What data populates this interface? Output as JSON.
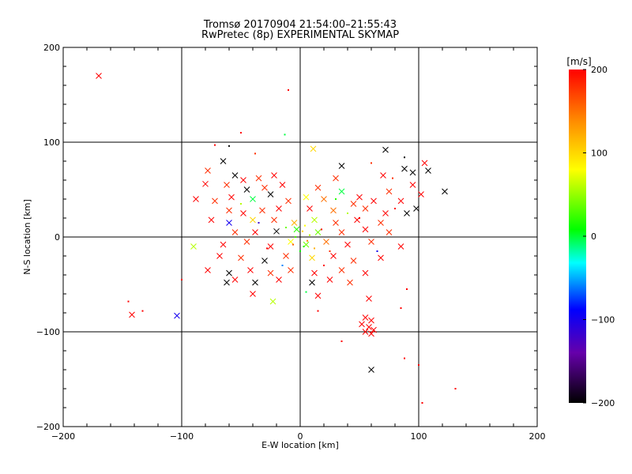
{
  "chart_data": {
    "type": "scatter",
    "title": "Tromsø 20170904 21:54:00–21:55:43",
    "subtitle": "RwPretec (8p) EXPERIMENTAL SKYMAP",
    "xlabel": "E-W location [km]",
    "ylabel": "N-S location [km]",
    "xlim": [
      -200,
      200
    ],
    "ylim": [
      -200,
      200
    ],
    "x_ticks": [
      -200,
      -100,
      0,
      100,
      200
    ],
    "y_ticks": [
      -200,
      -100,
      0,
      100,
      200
    ],
    "x_tick_labels": [
      "−200",
      "−100",
      "0",
      "100",
      "200"
    ],
    "y_tick_labels": [
      "−200",
      "−100",
      "0",
      "100",
      "200"
    ],
    "grid": true,
    "colorbar": {
      "label": "[m/s]",
      "range": [
        -200,
        200
      ],
      "ticks": [
        200,
        100,
        0,
        -100,
        -200
      ],
      "tick_labels": [
        "200",
        "100",
        "0",
        "−100",
        "−200"
      ],
      "colormap": [
        "#000000",
        "#6600aa",
        "#0000ff",
        "#00ffff",
        "#00ff00",
        "#ffff00",
        "#ff8800",
        "#ff0000"
      ]
    },
    "points": [
      {
        "x": -170,
        "y": 170,
        "v": 200,
        "m": "x"
      },
      {
        "x": -10,
        "y": 155,
        "v": 200,
        "m": "d"
      },
      {
        "x": -13,
        "y": 108,
        "v": 0,
        "m": "d"
      },
      {
        "x": -50,
        "y": 110,
        "v": 200,
        "m": "d"
      },
      {
        "x": -72,
        "y": 97,
        "v": 200,
        "m": "d"
      },
      {
        "x": -60,
        "y": 96,
        "v": -200,
        "m": "d"
      },
      {
        "x": -38,
        "y": 88,
        "v": 180,
        "m": "d"
      },
      {
        "x": 11,
        "y": 93,
        "v": 100,
        "m": "x"
      },
      {
        "x": 72,
        "y": 92,
        "v": -200,
        "m": "x"
      },
      {
        "x": 88,
        "y": 84,
        "v": -200,
        "m": "d"
      },
      {
        "x": -65,
        "y": 80,
        "v": -200,
        "m": "x"
      },
      {
        "x": -78,
        "y": 70,
        "v": 180,
        "m": "x"
      },
      {
        "x": 35,
        "y": 75,
        "v": -200,
        "m": "x"
      },
      {
        "x": 60,
        "y": 78,
        "v": 180,
        "m": "d"
      },
      {
        "x": 88,
        "y": 72,
        "v": -200,
        "m": "x"
      },
      {
        "x": 95,
        "y": 68,
        "v": -200,
        "m": "x"
      },
      {
        "x": 105,
        "y": 78,
        "v": 200,
        "m": "x"
      },
      {
        "x": 108,
        "y": 70,
        "v": -200,
        "m": "x"
      },
      {
        "x": -55,
        "y": 65,
        "v": -200,
        "m": "x"
      },
      {
        "x": -48,
        "y": 60,
        "v": 200,
        "m": "x"
      },
      {
        "x": -35,
        "y": 62,
        "v": 180,
        "m": "x"
      },
      {
        "x": -22,
        "y": 65,
        "v": 200,
        "m": "x"
      },
      {
        "x": 30,
        "y": 62,
        "v": 180,
        "m": "x"
      },
      {
        "x": 70,
        "y": 65,
        "v": 200,
        "m": "x"
      },
      {
        "x": 78,
        "y": 62,
        "v": 180,
        "m": "d"
      },
      {
        "x": -80,
        "y": 56,
        "v": 200,
        "m": "x"
      },
      {
        "x": -62,
        "y": 55,
        "v": 180,
        "m": "x"
      },
      {
        "x": -45,
        "y": 50,
        "v": -200,
        "m": "x"
      },
      {
        "x": -30,
        "y": 52,
        "v": 180,
        "m": "x"
      },
      {
        "x": -15,
        "y": 55,
        "v": 200,
        "m": "x"
      },
      {
        "x": 15,
        "y": 52,
        "v": 180,
        "m": "x"
      },
      {
        "x": 35,
        "y": 48,
        "v": 0,
        "m": "x"
      },
      {
        "x": 50,
        "y": 42,
        "v": 200,
        "m": "x"
      },
      {
        "x": 75,
        "y": 48,
        "v": 180,
        "m": "x"
      },
      {
        "x": 95,
        "y": 55,
        "v": 200,
        "m": "x"
      },
      {
        "x": 102,
        "y": 45,
        "v": 200,
        "m": "x"
      },
      {
        "x": 122,
        "y": 48,
        "v": -200,
        "m": "x"
      },
      {
        "x": -88,
        "y": 40,
        "v": 200,
        "m": "x"
      },
      {
        "x": -72,
        "y": 38,
        "v": 180,
        "m": "x"
      },
      {
        "x": -58,
        "y": 42,
        "v": 200,
        "m": "x"
      },
      {
        "x": -40,
        "y": 40,
        "v": 0,
        "m": "x"
      },
      {
        "x": -25,
        "y": 45,
        "v": -200,
        "m": "x"
      },
      {
        "x": -10,
        "y": 38,
        "v": 180,
        "m": "x"
      },
      {
        "x": 5,
        "y": 42,
        "v": 80,
        "m": "x"
      },
      {
        "x": 20,
        "y": 40,
        "v": 150,
        "m": "x"
      },
      {
        "x": 45,
        "y": 35,
        "v": 180,
        "m": "x"
      },
      {
        "x": 62,
        "y": 38,
        "v": 200,
        "m": "x"
      },
      {
        "x": 85,
        "y": 38,
        "v": 200,
        "m": "x"
      },
      {
        "x": 98,
        "y": 30,
        "v": -200,
        "m": "x"
      },
      {
        "x": -60,
        "y": 28,
        "v": 180,
        "m": "x"
      },
      {
        "x": -48,
        "y": 25,
        "v": 200,
        "m": "x"
      },
      {
        "x": -32,
        "y": 28,
        "v": 180,
        "m": "x"
      },
      {
        "x": -18,
        "y": 30,
        "v": 200,
        "m": "x"
      },
      {
        "x": 8,
        "y": 30,
        "v": 200,
        "m": "x"
      },
      {
        "x": 28,
        "y": 28,
        "v": 150,
        "m": "x"
      },
      {
        "x": 55,
        "y": 30,
        "v": 180,
        "m": "x"
      },
      {
        "x": 72,
        "y": 25,
        "v": 200,
        "m": "x"
      },
      {
        "x": 90,
        "y": 25,
        "v": -200,
        "m": "x"
      },
      {
        "x": -75,
        "y": 18,
        "v": 200,
        "m": "x"
      },
      {
        "x": -60,
        "y": 15,
        "v": -100,
        "m": "x"
      },
      {
        "x": -40,
        "y": 18,
        "v": 100,
        "m": "x"
      },
      {
        "x": -22,
        "y": 18,
        "v": 180,
        "m": "x"
      },
      {
        "x": -5,
        "y": 15,
        "v": 120,
        "m": "x"
      },
      {
        "x": 12,
        "y": 18,
        "v": 60,
        "m": "x"
      },
      {
        "x": 30,
        "y": 15,
        "v": 180,
        "m": "x"
      },
      {
        "x": 48,
        "y": 18,
        "v": 200,
        "m": "x"
      },
      {
        "x": 68,
        "y": 15,
        "v": 180,
        "m": "x"
      },
      {
        "x": -55,
        "y": 5,
        "v": 180,
        "m": "x"
      },
      {
        "x": -38,
        "y": 5,
        "v": 200,
        "m": "x"
      },
      {
        "x": -20,
        "y": 6,
        "v": -200,
        "m": "x"
      },
      {
        "x": -3,
        "y": 8,
        "v": 20,
        "m": "x"
      },
      {
        "x": 15,
        "y": 5,
        "v": 40,
        "m": "x"
      },
      {
        "x": 35,
        "y": 5,
        "v": 180,
        "m": "x"
      },
      {
        "x": 55,
        "y": 8,
        "v": 200,
        "m": "x"
      },
      {
        "x": 75,
        "y": 5,
        "v": 180,
        "m": "x"
      },
      {
        "x": -90,
        "y": -10,
        "v": 60,
        "m": "x"
      },
      {
        "x": -65,
        "y": -8,
        "v": 200,
        "m": "x"
      },
      {
        "x": -45,
        "y": -5,
        "v": 180,
        "m": "x"
      },
      {
        "x": -25,
        "y": -10,
        "v": 200,
        "m": "x"
      },
      {
        "x": -8,
        "y": -5,
        "v": 80,
        "m": "x"
      },
      {
        "x": 5,
        "y": -8,
        "v": 40,
        "m": "x"
      },
      {
        "x": 22,
        "y": -5,
        "v": 150,
        "m": "x"
      },
      {
        "x": 40,
        "y": -8,
        "v": 200,
        "m": "x"
      },
      {
        "x": 60,
        "y": -5,
        "v": 180,
        "m": "x"
      },
      {
        "x": 85,
        "y": -10,
        "v": 200,
        "m": "x"
      },
      {
        "x": -68,
        "y": -20,
        "v": 200,
        "m": "x"
      },
      {
        "x": -50,
        "y": -22,
        "v": 180,
        "m": "x"
      },
      {
        "x": -30,
        "y": -25,
        "v": -200,
        "m": "x"
      },
      {
        "x": -12,
        "y": -20,
        "v": 180,
        "m": "x"
      },
      {
        "x": 10,
        "y": -22,
        "v": 100,
        "m": "x"
      },
      {
        "x": 28,
        "y": -20,
        "v": 200,
        "m": "x"
      },
      {
        "x": 45,
        "y": -25,
        "v": 180,
        "m": "x"
      },
      {
        "x": 68,
        "y": -22,
        "v": 200,
        "m": "x"
      },
      {
        "x": -78,
        "y": -35,
        "v": 200,
        "m": "x"
      },
      {
        "x": -60,
        "y": -38,
        "v": -200,
        "m": "x"
      },
      {
        "x": -42,
        "y": -35,
        "v": 200,
        "m": "x"
      },
      {
        "x": -25,
        "y": -38,
        "v": 180,
        "m": "x"
      },
      {
        "x": -8,
        "y": -35,
        "v": 180,
        "m": "x"
      },
      {
        "x": 12,
        "y": -38,
        "v": 200,
        "m": "x"
      },
      {
        "x": 35,
        "y": -35,
        "v": 180,
        "m": "x"
      },
      {
        "x": 55,
        "y": -38,
        "v": 200,
        "m": "x"
      },
      {
        "x": -62,
        "y": -48,
        "v": -200,
        "m": "x"
      },
      {
        "x": -55,
        "y": -45,
        "v": 200,
        "m": "x"
      },
      {
        "x": -38,
        "y": -48,
        "v": -200,
        "m": "x"
      },
      {
        "x": -18,
        "y": -45,
        "v": 200,
        "m": "x"
      },
      {
        "x": 10,
        "y": -48,
        "v": -200,
        "m": "x"
      },
      {
        "x": 25,
        "y": -45,
        "v": 200,
        "m": "x"
      },
      {
        "x": 42,
        "y": -48,
        "v": 180,
        "m": "x"
      },
      {
        "x": -40,
        "y": -60,
        "v": 200,
        "m": "x"
      },
      {
        "x": 15,
        "y": -62,
        "v": 200,
        "m": "x"
      },
      {
        "x": -23,
        "y": -68,
        "v": 60,
        "m": "x"
      },
      {
        "x": 58,
        "y": -65,
        "v": 200,
        "m": "x"
      },
      {
        "x": -142,
        "y": -82,
        "v": 200,
        "m": "x"
      },
      {
        "x": -104,
        "y": -83,
        "v": -100,
        "m": "x"
      },
      {
        "x": 55,
        "y": -85,
        "v": 200,
        "m": "x"
      },
      {
        "x": 60,
        "y": -88,
        "v": 200,
        "m": "x"
      },
      {
        "x": 52,
        "y": -92,
        "v": 200,
        "m": "x"
      },
      {
        "x": 58,
        "y": -95,
        "v": 200,
        "m": "x"
      },
      {
        "x": 62,
        "y": -98,
        "v": 200,
        "m": "x"
      },
      {
        "x": 55,
        "y": -100,
        "v": 200,
        "m": "x"
      },
      {
        "x": 60,
        "y": -102,
        "v": 200,
        "m": "x"
      },
      {
        "x": 60,
        "y": -140,
        "v": -200,
        "m": "x"
      },
      {
        "x": -145,
        "y": -68,
        "v": 200,
        "m": "d"
      },
      {
        "x": -133,
        "y": -78,
        "v": 200,
        "m": "d"
      },
      {
        "x": -100,
        "y": -45,
        "v": 200,
        "m": "d"
      },
      {
        "x": 88,
        "y": -128,
        "v": 200,
        "m": "d"
      },
      {
        "x": 100,
        "y": -135,
        "v": 200,
        "m": "d"
      },
      {
        "x": 131,
        "y": -160,
        "v": 200,
        "m": "d"
      },
      {
        "x": 103,
        "y": -175,
        "v": 200,
        "m": "d"
      },
      {
        "x": 35,
        "y": -110,
        "v": 200,
        "m": "d"
      },
      {
        "x": 85,
        "y": -75,
        "v": 200,
        "m": "d"
      },
      {
        "x": 90,
        "y": -55,
        "v": 200,
        "m": "d"
      },
      {
        "x": 5,
        "y": -58,
        "v": 0,
        "m": "d"
      },
      {
        "x": 15,
        "y": -78,
        "v": 200,
        "m": "d"
      },
      {
        "x": 3,
        "y": -10,
        "v": 20,
        "m": "d"
      },
      {
        "x": 8,
        "y": 2,
        "v": 60,
        "m": "d"
      },
      {
        "x": 2,
        "y": 6,
        "v": 100,
        "m": "d"
      },
      {
        "x": -4,
        "y": 0,
        "v": 30,
        "m": "d"
      },
      {
        "x": 6,
        "y": -4,
        "v": 140,
        "m": "d"
      },
      {
        "x": 0,
        "y": -15,
        "v": 10,
        "m": "d"
      },
      {
        "x": 4,
        "y": 12,
        "v": 80,
        "m": "d"
      },
      {
        "x": -6,
        "y": -8,
        "v": 160,
        "m": "d"
      },
      {
        "x": 12,
        "y": -12,
        "v": 120,
        "m": "d"
      },
      {
        "x": 18,
        "y": 8,
        "v": 200,
        "m": "d"
      },
      {
        "x": -12,
        "y": 10,
        "v": 40,
        "m": "d"
      },
      {
        "x": 25,
        "y": -15,
        "v": 180,
        "m": "d"
      },
      {
        "x": 40,
        "y": 25,
        "v": 60,
        "m": "d"
      },
      {
        "x": 50,
        "y": 20,
        "v": 200,
        "m": "d"
      },
      {
        "x": -28,
        "y": -12,
        "v": 200,
        "m": "d"
      },
      {
        "x": -35,
        "y": 15,
        "v": -120,
        "m": "d"
      },
      {
        "x": 65,
        "y": -15,
        "v": -100,
        "m": "d"
      },
      {
        "x": 80,
        "y": 30,
        "v": 200,
        "m": "d"
      },
      {
        "x": -50,
        "y": 35,
        "v": 60,
        "m": "d"
      },
      {
        "x": 30,
        "y": 40,
        "v": 20,
        "m": "d"
      },
      {
        "x": -15,
        "y": -30,
        "v": -60,
        "m": "d"
      },
      {
        "x": 20,
        "y": -30,
        "v": 200,
        "m": "d"
      }
    ]
  }
}
